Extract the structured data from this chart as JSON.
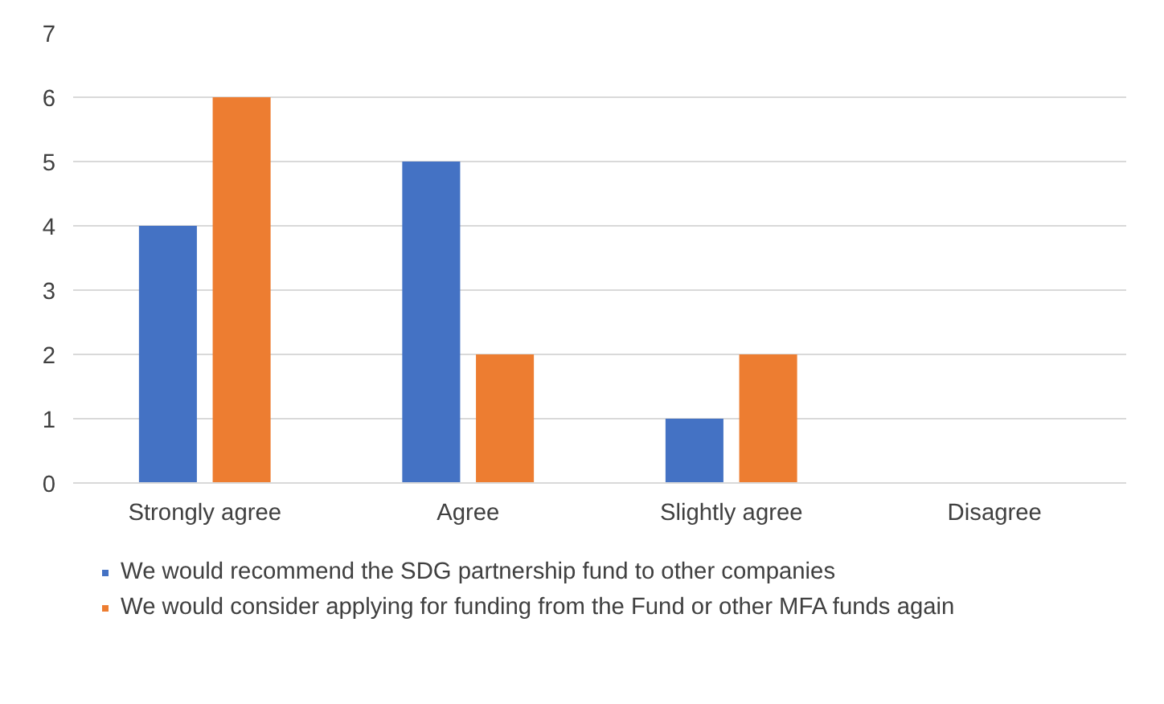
{
  "chart_data": {
    "type": "bar",
    "categories": [
      "Strongly agree",
      "Agree",
      "Slightly agree",
      "Disagree"
    ],
    "series": [
      {
        "name": "We would recommend the SDG partnership fund to other companies",
        "color": "#4472c4",
        "values": [
          4,
          5,
          1,
          0
        ]
      },
      {
        "name": "We would consider applying for funding from the Fund or other MFA funds again",
        "color": "#ed7d31",
        "values": [
          6,
          2,
          2,
          0
        ]
      }
    ],
    "ylim": [
      0,
      7
    ],
    "yticks": [
      0,
      1,
      2,
      3,
      4,
      5,
      6,
      7
    ],
    "grid": "y",
    "legend": "bottom"
  }
}
